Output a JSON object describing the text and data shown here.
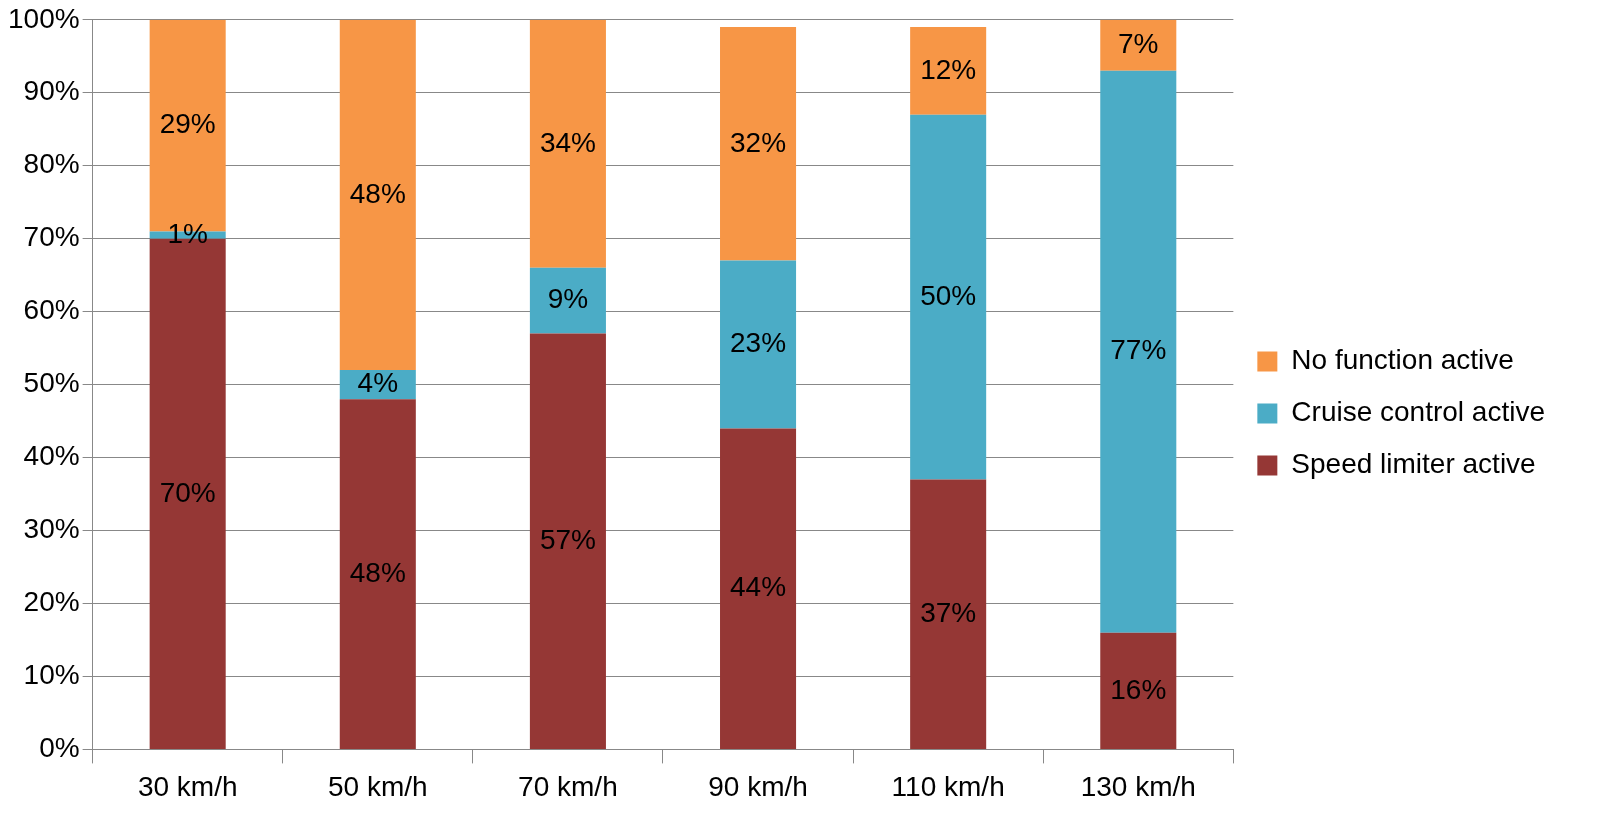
{
  "chart_data": {
    "type": "bar",
    "stacked": true,
    "categories": [
      "30 km/h",
      "50 km/h",
      "70 km/h",
      "90 km/h",
      "110 km/h",
      "130 km/h"
    ],
    "series": [
      {
        "name": "Speed limiter active",
        "color": "#953735",
        "values": [
          70,
          48,
          57,
          44,
          37,
          16
        ],
        "value_labels": [
          "70%",
          "48%",
          "57%",
          "44%",
          "37%",
          "16%"
        ]
      },
      {
        "name": "Cruise control active",
        "color": "#4bacc6",
        "values": [
          1,
          4,
          9,
          23,
          50,
          77
        ],
        "value_labels": [
          "1%",
          "4%",
          "9%",
          "23%",
          "50%",
          "77%"
        ]
      },
      {
        "name": "No function active",
        "color": "#f79646",
        "values": [
          29,
          48,
          34,
          32,
          12,
          7
        ],
        "value_labels": [
          "29%",
          "48%",
          "34%",
          "32%",
          "12%",
          "7%"
        ]
      }
    ],
    "ylim": [
      0,
      100
    ],
    "yticks": [
      {
        "value": 0,
        "label": "0%"
      },
      {
        "value": 10,
        "label": "10%"
      },
      {
        "value": 20,
        "label": "20%"
      },
      {
        "value": 30,
        "label": "30%"
      },
      {
        "value": 40,
        "label": "40%"
      },
      {
        "value": 50,
        "label": "50%"
      },
      {
        "value": 60,
        "label": "60%"
      },
      {
        "value": 70,
        "label": "70%"
      },
      {
        "value": 80,
        "label": "80%"
      },
      {
        "value": 90,
        "label": "90%"
      },
      {
        "value": 100,
        "label": "100%"
      }
    ],
    "grid": "y",
    "legend": "right"
  }
}
